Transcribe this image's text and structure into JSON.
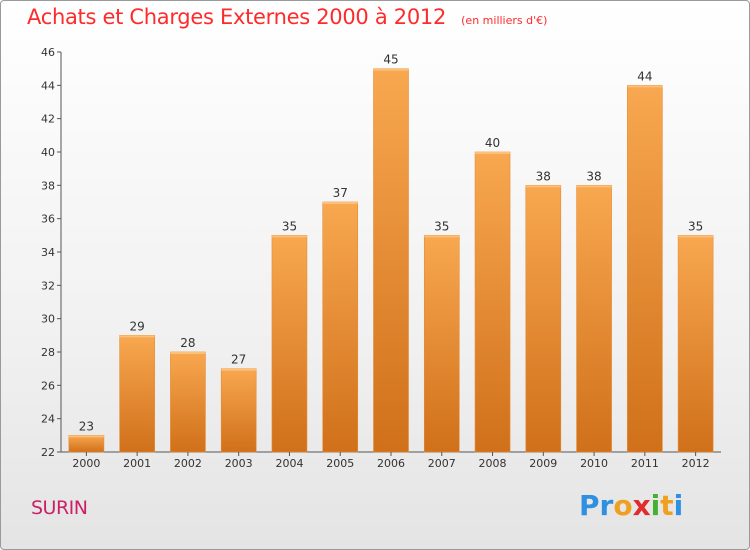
{
  "chart_data": {
    "type": "bar",
    "title": "Achats et Charges Externes 2000 à 2012",
    "subtitle": "(en milliers d'€)",
    "categories": [
      "2000",
      "2001",
      "2002",
      "2003",
      "2004",
      "2005",
      "2006",
      "2007",
      "2008",
      "2009",
      "2010",
      "2011",
      "2012"
    ],
    "values": [
      23,
      29,
      28,
      27,
      35,
      37,
      45,
      35,
      40,
      38,
      38,
      44,
      35
    ],
    "ylim": [
      22,
      46
    ],
    "yticks": [
      22,
      24,
      26,
      28,
      30,
      32,
      34,
      36,
      38,
      40,
      42,
      44,
      46
    ],
    "grid": false,
    "bar_color": "#f08c2e",
    "bar_color_light": "#f8a850",
    "bar_color_dark": "#d0701a"
  },
  "location": "SURIN",
  "logo": {
    "letters": [
      "P",
      "r",
      "o",
      "x",
      "i",
      "t",
      "i"
    ],
    "colors": [
      "#2f8fe0",
      "#2f8fe0",
      "#f0a020",
      "#e02c2c",
      "#44b030",
      "#f0a020",
      "#2f8fe0"
    ]
  }
}
